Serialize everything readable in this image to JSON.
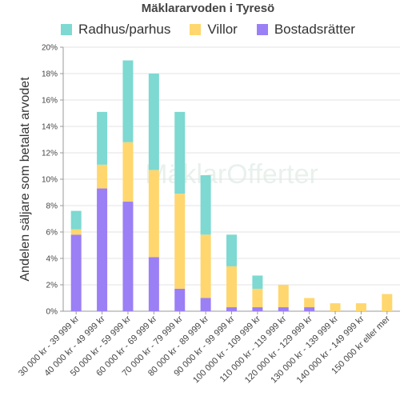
{
  "chart_data": {
    "type": "bar",
    "stacked": true,
    "title": "Mäklararvoden i Tyresö",
    "ylabel": "Andelen säljare som betalat arvodet",
    "xlabel": "",
    "ylim": [
      0,
      20
    ],
    "yticks": [
      "0%",
      "2%",
      "4%",
      "6%",
      "8%",
      "10%",
      "12%",
      "14%",
      "16%",
      "18%",
      "20%"
    ],
    "grid": true,
    "legend_position": "top",
    "watermark": "MäklarOfferter",
    "categories": [
      "30 000 kr - 39 999 kr",
      "40 000 kr - 49 999 kr",
      "50 000 kr - 59 999 kr",
      "60 000 kr - 69 999 kr",
      "70 000 kr - 79 999 kr",
      "80 000 kr - 89 999 kr",
      "90 000 kr - 99 999 kr",
      "100 000 kr - 109 999 kr",
      "110 000 kr - 119 999 kr",
      "120 000 kr - 129 999 kr",
      "130 000 kr - 139 999 kr",
      "140 000 kr - 149 999 kr",
      "150 000 kr eller mer"
    ],
    "series": [
      {
        "name": "Bostadsrätter",
        "color": "#9b7ff5",
        "values": [
          5.8,
          9.3,
          8.3,
          4.1,
          1.7,
          1.0,
          0.3,
          0.3,
          0.3,
          0.3,
          0.0,
          0.0,
          0.0
        ]
      },
      {
        "name": "Villor",
        "color": "#ffd76e",
        "values": [
          0.4,
          1.8,
          4.5,
          6.6,
          7.2,
          4.8,
          3.1,
          1.4,
          1.7,
          0.7,
          0.6,
          0.6,
          1.3
        ]
      },
      {
        "name": "Radhus/parhus",
        "color": "#7dd9d2",
        "values": [
          1.4,
          4.0,
          6.2,
          7.3,
          6.2,
          4.5,
          2.4,
          1.0,
          0.0,
          0.0,
          0.0,
          0.0,
          0.0
        ]
      }
    ],
    "legend_order": [
      "Radhus/parhus",
      "Villor",
      "Bostadsrätter"
    ]
  }
}
